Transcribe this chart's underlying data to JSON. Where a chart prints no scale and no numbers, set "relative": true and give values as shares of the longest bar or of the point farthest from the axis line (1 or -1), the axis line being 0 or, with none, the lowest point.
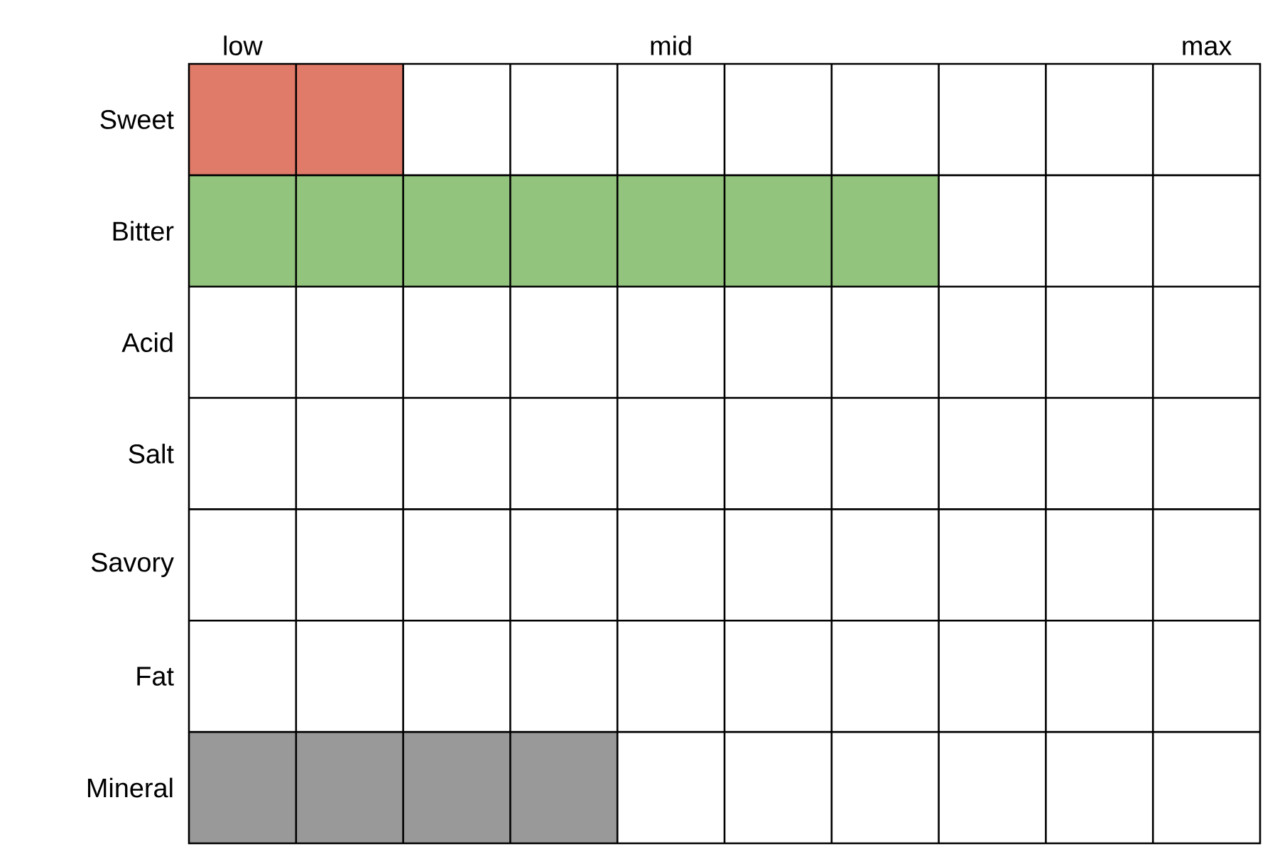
{
  "chart_data": {
    "type": "bar",
    "orientation": "horizontal",
    "relative": true,
    "categories": [
      "Sweet",
      "Bitter",
      "Acid",
      "Salt",
      "Savory",
      "Fat",
      "Mineral"
    ],
    "values": [
      0.2857,
      1,
      0,
      0,
      0,
      0,
      0.5714
    ],
    "colors": [
      "#e07b6a",
      "#93c47d",
      "#999999",
      "#999999",
      "#999999",
      "#999999",
      "#999999"
    ],
    "annotations": [
      "low",
      "mid",
      "max"
    ],
    "grid": true
  }
}
